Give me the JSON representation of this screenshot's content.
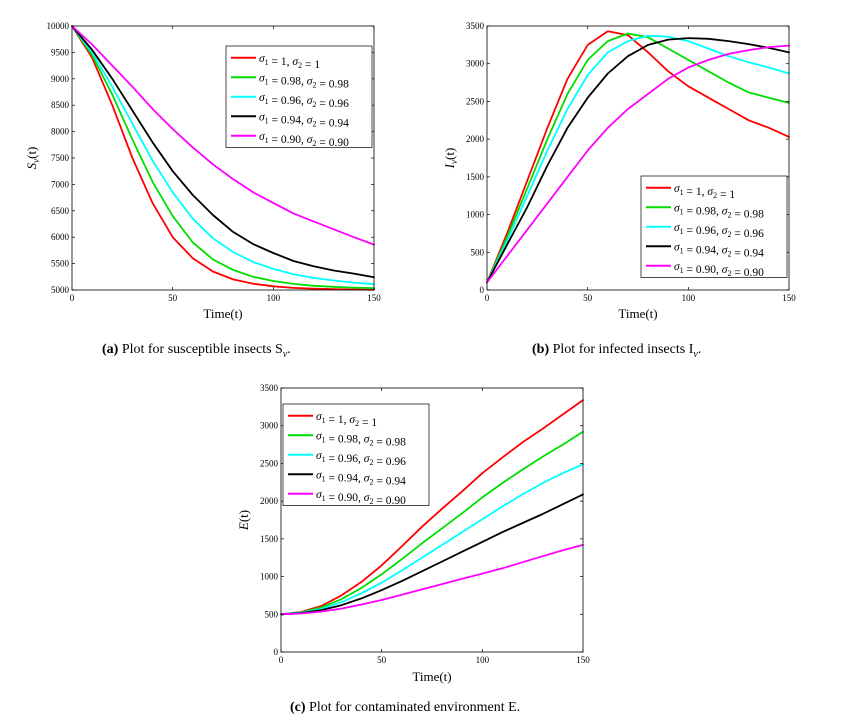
{
  "figure_captions": [
    {
      "label": "(a)",
      "text": "Plot for susceptible insects S"
    },
    {
      "label": "(b)",
      "text": "Plot for infected insects I"
    },
    {
      "label": "(c)",
      "text": "Plot for contaminated environment E."
    }
  ],
  "caption_suffix": {
    "a": "v",
    "a_tail": ".",
    "b": "v",
    "b_tail": "."
  },
  "colors": {
    "red": "#ff0000",
    "green": "#00dd00",
    "cyan": "#00ffff",
    "black": "#000000",
    "magenta": "#ff00ff"
  },
  "chart_data": [
    {
      "type": "line",
      "title": "",
      "xlabel": "Time(t)",
      "ylabel": "S_v(t)",
      "xlim": [
        0,
        150
      ],
      "ylim": [
        5000,
        10000
      ],
      "xticks": [
        0,
        50,
        100,
        150
      ],
      "yticks": [
        5000,
        5500,
        6000,
        6500,
        7000,
        7500,
        8000,
        8500,
        9000,
        9500,
        10000
      ],
      "legend_position": "top-right",
      "x": [
        0,
        10,
        20,
        30,
        40,
        50,
        60,
        70,
        80,
        90,
        100,
        110,
        120,
        130,
        140,
        150
      ],
      "series": [
        {
          "name": "σ1 = 1, σ2 = 1",
          "color": "#ff0000",
          "values": [
            10000,
            9400,
            8500,
            7500,
            6650,
            6000,
            5600,
            5350,
            5200,
            5120,
            5070,
            5040,
            5025,
            5015,
            5010,
            5005
          ]
        },
        {
          "name": "σ1 = 0.98, σ2 = 0.98",
          "color": "#00dd00",
          "values": [
            10000,
            9450,
            8700,
            7850,
            7050,
            6400,
            5900,
            5580,
            5380,
            5250,
            5170,
            5115,
            5080,
            5060,
            5045,
            5035
          ]
        },
        {
          "name": "σ1 = 0.96, σ2 = 0.96",
          "color": "#00ffff",
          "values": [
            10000,
            9500,
            8850,
            8150,
            7450,
            6850,
            6350,
            5980,
            5720,
            5530,
            5400,
            5300,
            5230,
            5180,
            5140,
            5110
          ]
        },
        {
          "name": "σ1 = 0.94, σ2 = 0.94",
          "color": "#000000",
          "values": [
            10000,
            9550,
            9000,
            8400,
            7800,
            7250,
            6800,
            6420,
            6100,
            5870,
            5700,
            5550,
            5450,
            5370,
            5310,
            5240
          ]
        },
        {
          "name": "σ1 = 0.90, σ2 = 0.90",
          "color": "#ff00ff",
          "values": [
            10000,
            9650,
            9250,
            8850,
            8430,
            8050,
            7700,
            7380,
            7100,
            6850,
            6650,
            6450,
            6300,
            6150,
            6000,
            5860
          ]
        }
      ]
    },
    {
      "type": "line",
      "title": "",
      "xlabel": "Time(t)",
      "ylabel": "I_v(t)",
      "xlim": [
        0,
        150
      ],
      "ylim": [
        0,
        3500
      ],
      "xticks": [
        0,
        50,
        100,
        150
      ],
      "yticks": [
        0,
        500,
        1000,
        1500,
        2000,
        2500,
        3000,
        3500
      ],
      "legend_position": "bottom-right",
      "x": [
        0,
        10,
        20,
        30,
        40,
        50,
        60,
        70,
        80,
        90,
        100,
        110,
        120,
        130,
        140,
        150
      ],
      "series": [
        {
          "name": "σ1 = 1, σ2 = 1",
          "color": "#ff0000",
          "values": [
            100,
            750,
            1450,
            2150,
            2800,
            3250,
            3430,
            3380,
            3150,
            2900,
            2700,
            2550,
            2400,
            2250,
            2150,
            2030
          ]
        },
        {
          "name": "σ1 = 0.98, σ2 = 0.98",
          "color": "#00dd00",
          "values": [
            100,
            700,
            1350,
            2000,
            2600,
            3050,
            3300,
            3400,
            3350,
            3200,
            3050,
            2900,
            2750,
            2620,
            2550,
            2480
          ]
        },
        {
          "name": "σ1 = 0.96, σ2 = 0.96",
          "color": "#00ffff",
          "values": [
            100,
            650,
            1250,
            1850,
            2400,
            2850,
            3150,
            3300,
            3370,
            3360,
            3300,
            3200,
            3100,
            3020,
            2950,
            2870
          ]
        },
        {
          "name": "σ1 = 0.94, σ2 = 0.94",
          "color": "#000000",
          "values": [
            100,
            600,
            1100,
            1650,
            2150,
            2550,
            2870,
            3100,
            3250,
            3320,
            3340,
            3330,
            3300,
            3260,
            3210,
            3150
          ]
        },
        {
          "name": "σ1 = 0.90, σ2 = 0.90",
          "color": "#ff00ff",
          "values": [
            100,
            450,
            800,
            1150,
            1500,
            1850,
            2150,
            2400,
            2600,
            2800,
            2950,
            3050,
            3130,
            3180,
            3220,
            3240
          ]
        }
      ]
    },
    {
      "type": "line",
      "title": "",
      "xlabel": "Time(t)",
      "ylabel": "E(t)",
      "xlim": [
        0,
        150
      ],
      "ylim": [
        0,
        3500
      ],
      "xticks": [
        0,
        50,
        100,
        150
      ],
      "yticks": [
        0,
        500,
        1000,
        1500,
        2000,
        2500,
        3000,
        3500
      ],
      "legend_position": "top-left",
      "x": [
        0,
        10,
        20,
        30,
        40,
        50,
        60,
        70,
        80,
        90,
        100,
        110,
        120,
        130,
        140,
        150
      ],
      "series": [
        {
          "name": "σ1 = 1, σ2 = 1",
          "color": "#ff0000",
          "values": [
            500,
            530,
            610,
            750,
            930,
            1150,
            1400,
            1660,
            1900,
            2130,
            2370,
            2580,
            2780,
            2960,
            3150,
            3340
          ]
        },
        {
          "name": "σ1 = 0.98, σ2 = 0.98",
          "color": "#00dd00",
          "values": [
            500,
            525,
            590,
            700,
            850,
            1030,
            1230,
            1440,
            1640,
            1840,
            2050,
            2240,
            2420,
            2590,
            2750,
            2920
          ]
        },
        {
          "name": "σ1 = 0.96, σ2 = 0.96",
          "color": "#00ffff",
          "values": [
            500,
            520,
            570,
            660,
            780,
            920,
            1080,
            1250,
            1420,
            1590,
            1760,
            1930,
            2090,
            2240,
            2370,
            2490
          ]
        },
        {
          "name": "σ1 = 0.94, σ2 = 0.94",
          "color": "#000000",
          "values": [
            500,
            515,
            555,
            620,
            710,
            820,
            940,
            1070,
            1200,
            1330,
            1460,
            1590,
            1710,
            1830,
            1960,
            2090
          ]
        },
        {
          "name": "σ1 = 0.90, σ2 = 0.90",
          "color": "#ff00ff",
          "values": [
            500,
            510,
            535,
            575,
            630,
            690,
            760,
            830,
            900,
            970,
            1040,
            1110,
            1190,
            1270,
            1350,
            1420
          ]
        }
      ]
    }
  ]
}
